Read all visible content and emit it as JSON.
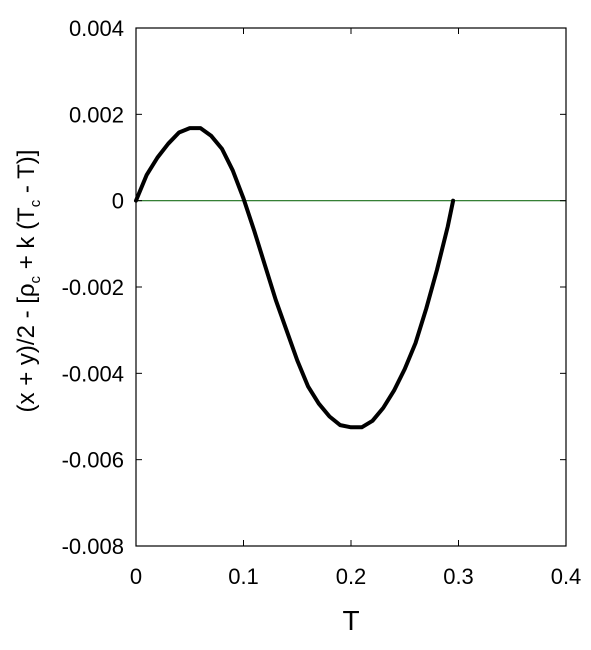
{
  "chart_data": {
    "type": "line",
    "title": "",
    "xlabel": "T",
    "ylabel": {
      "p1": "(x + y)/2 - [ρ",
      "s1": "c",
      "p2": " + k (T",
      "s2": "c",
      "p3": " - T)]"
    },
    "xlim": [
      0,
      0.4
    ],
    "ylim": [
      -0.008,
      0.004
    ],
    "x_ticks": [
      0,
      0.1,
      0.2,
      0.3,
      0.4
    ],
    "x_tick_labels": [
      "0",
      "0.1",
      "0.2",
      "0.3",
      "0.4"
    ],
    "y_ticks": [
      0.004,
      0.002,
      0,
      -0.002,
      -0.004,
      -0.006,
      -0.008
    ],
    "y_tick_labels": [
      "0.004",
      "0.002",
      "0",
      "-0.002",
      "-0.004",
      "-0.006",
      "-0.008"
    ],
    "grid": false,
    "reference_lines": [
      {
        "y": 0,
        "color": "#1a6e1a"
      }
    ],
    "series": [
      {
        "color": "#000000",
        "x": [
          0,
          0.01,
          0.02,
          0.03,
          0.04,
          0.05,
          0.06,
          0.07,
          0.08,
          0.09,
          0.1,
          0.11,
          0.12,
          0.13,
          0.14,
          0.15,
          0.16,
          0.17,
          0.18,
          0.19,
          0.2,
          0.21,
          0.22,
          0.23,
          0.24,
          0.25,
          0.26,
          0.27,
          0.28,
          0.29,
          0.295
        ],
        "y": [
          0,
          0.0006,
          0.001,
          0.00132,
          0.00158,
          0.00168,
          0.00168,
          0.0015,
          0.0012,
          0.0007,
          5e-05,
          -0.0007,
          -0.0015,
          -0.0023,
          -0.003,
          -0.0037,
          -0.0043,
          -0.0047,
          -0.005,
          -0.0052,
          -0.00525,
          -0.00525,
          -0.0051,
          -0.0048,
          -0.0044,
          -0.0039,
          -0.0033,
          -0.0025,
          -0.0016,
          -0.0006,
          0
        ]
      }
    ]
  }
}
